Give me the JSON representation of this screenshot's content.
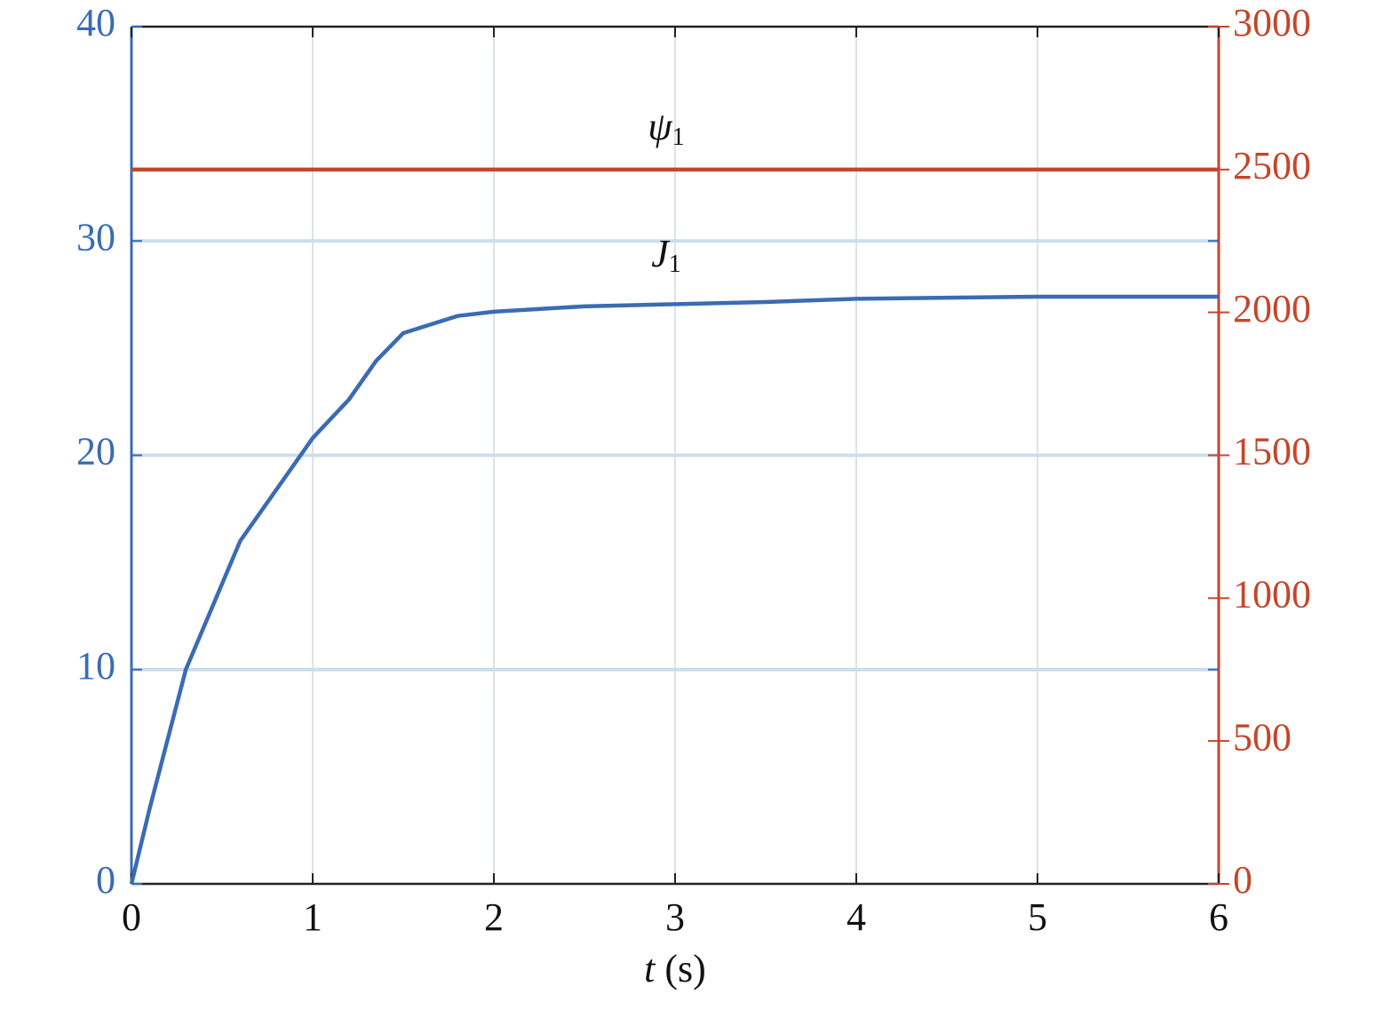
{
  "chart_data": {
    "type": "line",
    "x_label": {
      "var": "t",
      "unit": "(s)"
    },
    "xlim": [
      0,
      6
    ],
    "xticks": [
      0,
      1,
      2,
      3,
      4,
      5,
      6
    ],
    "ylim": [
      0,
      40
    ],
    "yticks": [
      0,
      10,
      20,
      30,
      40
    ],
    "y2lim": [
      0,
      3000
    ],
    "y2ticks": [
      0,
      500,
      1000,
      1500,
      2000,
      2500,
      3000
    ],
    "grid": true,
    "annotations": [
      {
        "symbol": "ψ",
        "sub": "1",
        "series": 1
      },
      {
        "symbol": "J",
        "sub": "1",
        "series": 0
      }
    ],
    "series": [
      {
        "name": "J1",
        "color": "#3b6bb4",
        "axis": "y",
        "x": [
          0,
          0.1,
          0.3,
          0.6,
          0.9,
          1.0,
          1.2,
          1.35,
          1.5,
          1.8,
          2.0,
          2.5,
          3.0,
          3.5,
          4.0,
          5.0,
          6.0
        ],
        "values": [
          0,
          3.5,
          10,
          16,
          19.6,
          20.8,
          22.6,
          24.4,
          25.7,
          26.5,
          26.7,
          26.95,
          27.05,
          27.15,
          27.3,
          27.4,
          27.4
        ]
      },
      {
        "name": "ψ1",
        "color": "#c4462b",
        "axis": "y2",
        "x": [
          0,
          6
        ],
        "values": [
          2500,
          2500
        ]
      }
    ]
  }
}
